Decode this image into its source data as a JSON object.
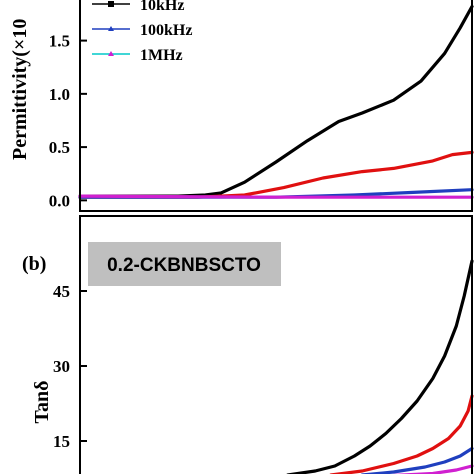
{
  "chart_data": [
    {
      "type": "line",
      "ylabel": "Permittivity(×10",
      "yticks": [
        "0.0",
        "0.5",
        "1.0",
        "1.5"
      ],
      "ylim": [
        -0.1,
        1.9
      ],
      "xlim": [
        0,
        1
      ],
      "legend": {
        "placement": "top-left",
        "entries": [
          {
            "label": "10kHz",
            "color": "#000000",
            "marker": "square"
          },
          {
            "label": "100kHz",
            "color": "#1f3fbf",
            "marker": "triangle"
          },
          {
            "label": "1MHz",
            "color": "#00c8c8",
            "marker": "triangle"
          }
        ]
      },
      "series": [
        {
          "color": "#000000",
          "x": [
            0.0,
            0.15,
            0.25,
            0.32,
            0.36,
            0.42,
            0.5,
            0.58,
            0.66,
            0.72,
            0.8,
            0.87,
            0.93,
            0.97,
            1.0
          ],
          "y": [
            0.04,
            0.04,
            0.04,
            0.05,
            0.07,
            0.17,
            0.36,
            0.56,
            0.74,
            0.82,
            0.94,
            1.12,
            1.38,
            1.62,
            1.82
          ]
        },
        {
          "color": "#e01010",
          "x": [
            0.0,
            0.3,
            0.42,
            0.52,
            0.62,
            0.72,
            0.8,
            0.9,
            0.95,
            1.0
          ],
          "y": [
            0.03,
            0.03,
            0.05,
            0.12,
            0.21,
            0.27,
            0.3,
            0.37,
            0.43,
            0.45
          ]
        },
        {
          "color": "#1f3fbf",
          "x": [
            0.0,
            0.5,
            0.7,
            0.85,
            1.0
          ],
          "y": [
            0.03,
            0.03,
            0.05,
            0.075,
            0.1
          ]
        },
        {
          "color": "#d020d0",
          "x": [
            0.0,
            0.5,
            1.0
          ],
          "y": [
            0.04,
            0.03,
            0.03
          ]
        }
      ]
    },
    {
      "type": "line",
      "panel_label": "(b)",
      "sample_label": "0.2-CKBNBSCTO",
      "ylabel": "Tanδ",
      "yticks": [
        "15",
        "30",
        "45"
      ],
      "ylim": [
        8,
        60
      ],
      "xlim": [
        0,
        1
      ],
      "series": [
        {
          "color": "#000000",
          "x": [
            0.53,
            0.6,
            0.65,
            0.7,
            0.74,
            0.78,
            0.82,
            0.86,
            0.9,
            0.93,
            0.96,
            0.98,
            1.0
          ],
          "y": [
            8.2,
            9.0,
            10.0,
            12.0,
            14.0,
            16.5,
            19.5,
            23.0,
            27.5,
            32.0,
            38.0,
            44.0,
            51.0
          ]
        },
        {
          "color": "#e01010",
          "x": [
            0.64,
            0.72,
            0.8,
            0.86,
            0.9,
            0.94,
            0.97,
            0.99,
            1.0
          ],
          "y": [
            8.2,
            9.0,
            10.5,
            12.0,
            13.5,
            15.5,
            18.0,
            21.0,
            24.0
          ]
        },
        {
          "color": "#1f3fbf",
          "x": [
            0.72,
            0.8,
            0.88,
            0.93,
            0.97,
            1.0
          ],
          "y": [
            8.2,
            8.8,
            9.8,
            10.8,
            12.0,
            13.5
          ]
        },
        {
          "color": "#d020d0",
          "x": [
            0.8,
            0.9,
            0.96,
            1.0
          ],
          "y": [
            8.1,
            8.5,
            9.2,
            10.0
          ]
        }
      ]
    }
  ]
}
